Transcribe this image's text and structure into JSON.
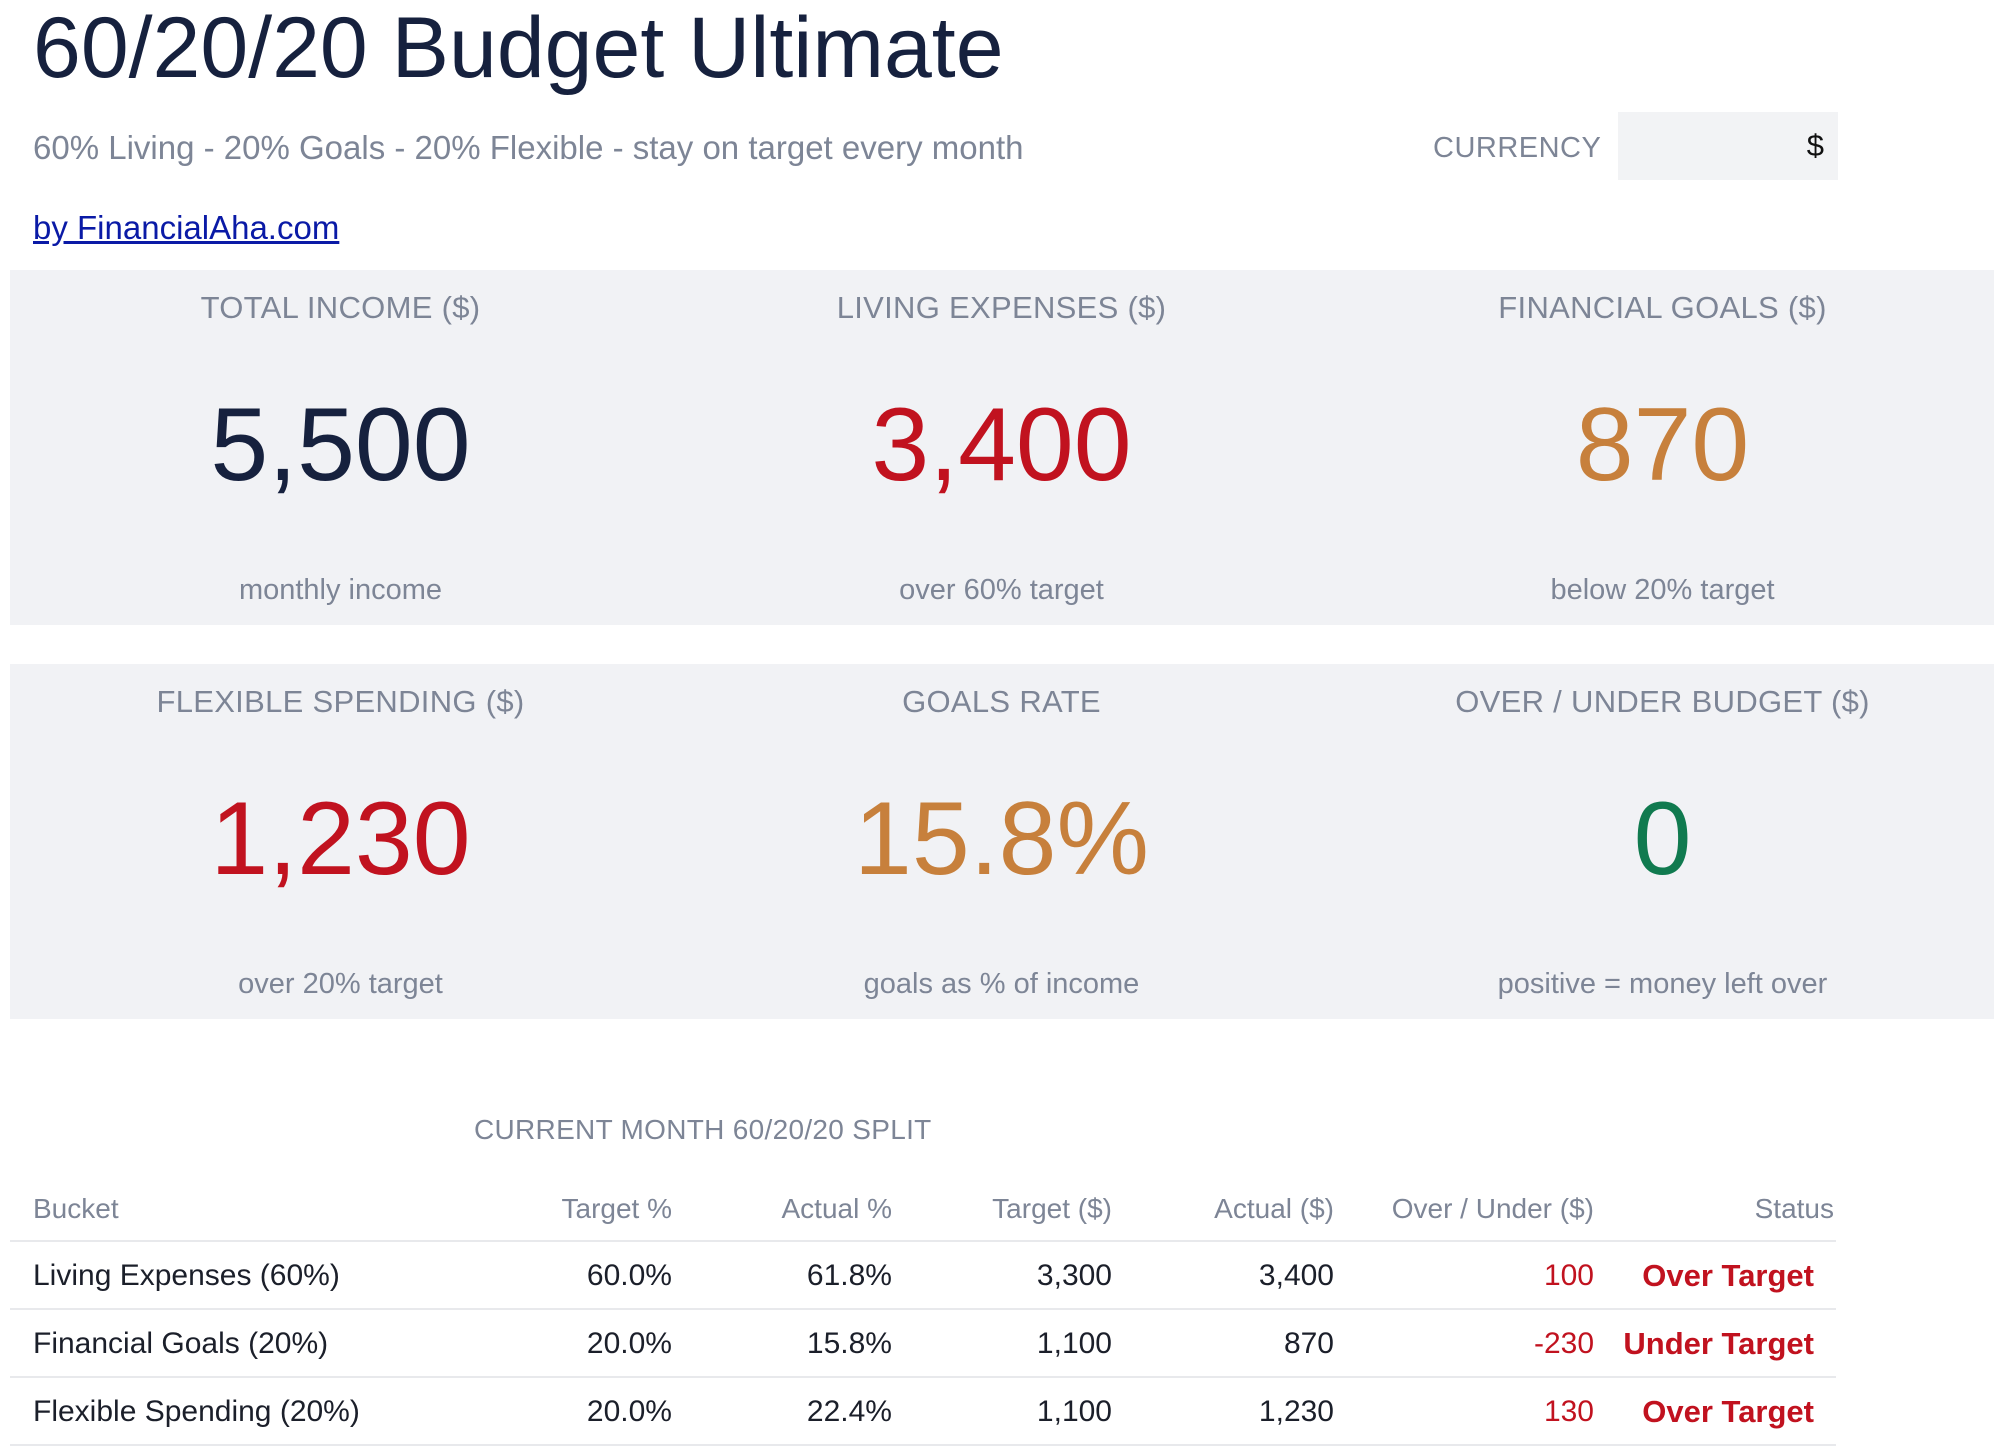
{
  "header": {
    "title": "60/20/20 Budget Ultimate",
    "subtitle": "60% Living - 20% Goals - 20% Flexible - stay on target every month",
    "byline": "by FinancialAha.com",
    "currency_label": "CURRENCY",
    "currency_value": "$"
  },
  "kpis": [
    {
      "label": "TOTAL INCOME ($)",
      "value": "5,500",
      "caption": "monthly income",
      "color": "#16213e"
    },
    {
      "label": "LIVING EXPENSES ($)",
      "value": "3,400",
      "caption": "over 60% target",
      "color": "#c1121f"
    },
    {
      "label": "FINANCIAL GOALS ($)",
      "value": "870",
      "caption": "below 20% target",
      "color": "#c7803c"
    },
    {
      "label": "FLEXIBLE SPENDING ($)",
      "value": "1,230",
      "caption": "over 20% target",
      "color": "#c1121f"
    },
    {
      "label": "GOALS RATE",
      "value": "15.8%",
      "caption": "goals as % of income",
      "color": "#c7803c"
    },
    {
      "label": "OVER / UNDER BUDGET ($)",
      "value": "0",
      "caption": "positive = money left over",
      "color": "#107a4f"
    }
  ],
  "split": {
    "title": "CURRENT MONTH 60/20/20 SPLIT",
    "columns": [
      "Bucket",
      "Target %",
      "Actual %",
      "Target ($)",
      "Actual ($)",
      "Over / Under ($)",
      "Status"
    ],
    "rows": [
      {
        "bucket": "Living Expenses (60%)",
        "target_pct": "60.0%",
        "actual_pct": "61.8%",
        "target_amt": "3,300",
        "actual_amt": "3,400",
        "over_under": "100",
        "status": "Over Target"
      },
      {
        "bucket": "Financial Goals (20%)",
        "target_pct": "20.0%",
        "actual_pct": "15.8%",
        "target_amt": "1,100",
        "actual_amt": "870",
        "over_under": "-230",
        "status": "Under Target"
      },
      {
        "bucket": "Flexible Spending (20%)",
        "target_pct": "20.0%",
        "actual_pct": "22.4%",
        "target_amt": "1,100",
        "actual_amt": "1,230",
        "over_under": "130",
        "status": "Over Target"
      }
    ]
  }
}
